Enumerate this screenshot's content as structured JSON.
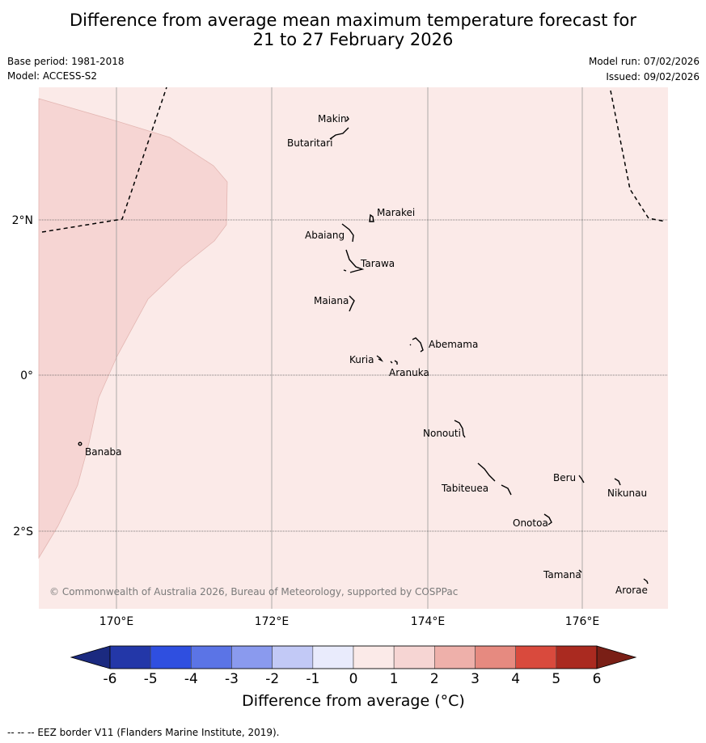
{
  "header": {
    "title_line1": "Difference from average mean maximum temperature forecast for",
    "title_line2": "21 to 27 February 2026",
    "base_period": "Base period: 1981-2018",
    "model": "Model: ACCESS-S2",
    "model_run": "Model run: 07/02/2026",
    "issued": "Issued: 09/02/2026"
  },
  "map": {
    "lon_labels": [
      "170°E",
      "172°E",
      "174°E",
      "176°E"
    ],
    "lat_labels": [
      "2°N",
      "0°",
      "2°S"
    ],
    "places": [
      "Makin",
      "Butaritari",
      "Marakei",
      "Abaiang",
      "Tarawa",
      "Maiana",
      "Abemama",
      "Kuria",
      "Aranuka",
      "Nonouti",
      "Banaba",
      "Beru",
      "Nikunau",
      "Tabiteuea",
      "Onotoa",
      "Tamana",
      "Arorae"
    ],
    "copyright": "© Commonwealth of Australia 2026, Bureau of Meteorology, supported by COSPPac",
    "anomaly_colors": {
      "zero_to_one": "#fbeae8",
      "one_to_two": "#f6d5d3"
    }
  },
  "colorbar": {
    "ticks": [
      "-6",
      "-5",
      "-4",
      "-3",
      "-2",
      "-1",
      "0",
      "1",
      "2",
      "3",
      "4",
      "5",
      "6"
    ],
    "colors": [
      "#2337a8",
      "#2f4fe0",
      "#5b74e6",
      "#8a9aee",
      "#c2c9f6",
      "#e9ebfc",
      "#fbeae8",
      "#f6d5d3",
      "#eeb0aa",
      "#e68a80",
      "#d94a3d",
      "#aa2a20"
    ],
    "under_color": "#1b2a80",
    "over_color": "#7a1f16",
    "label": "Difference from average (°C)"
  },
  "footer": {
    "eez_note": "--  --  -- EEZ border V11 (Flanders Marine Institute, 2019)."
  }
}
